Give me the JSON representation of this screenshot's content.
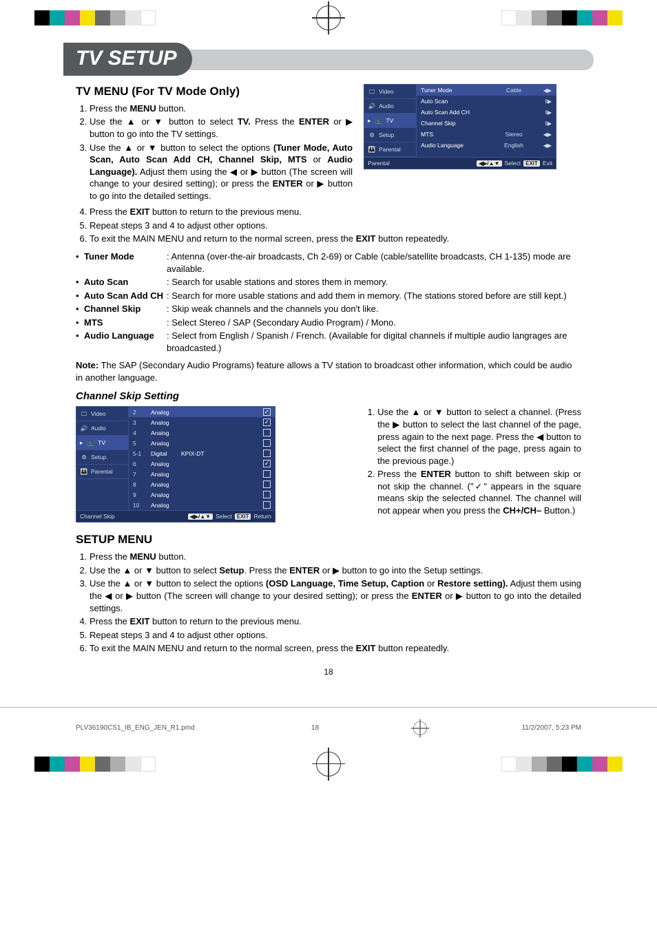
{
  "regmarks": {
    "colors_left": [
      "#000000",
      "#00a6a6",
      "#c64f9f",
      "#f5e100",
      "#6a6a6a",
      "#aeaeae",
      "#e7e7e7",
      "#ffffff"
    ],
    "colors_right": [
      "#ffffff",
      "#e7e7e7",
      "#aeaeae",
      "#6a6a6a",
      "#000000",
      "#00a6a6",
      "#c64f9f",
      "#f5e100"
    ]
  },
  "title": "TV SETUP",
  "section1": {
    "heading": "TV MENU (For TV Mode Only)",
    "steps": [
      "Press the <b>MENU</b> button.",
      "Use the ▲ or ▼ button to select <b>TV.</b> Press the <b>ENTER</b> or ▶ button to go into the TV settings.",
      "Use the ▲ or ▼ button to select the options <b>(Tuner Mode, Auto Scan, Auto Scan Add CH, Channel Skip, MTS</b> or <b>Audio Language).</b> Adjust them using the ◀ or ▶ button (The screen will change to your desired setting); or press the <b>ENTER</b> or ▶ button to go into the detailed settings.",
      "Press the <b>EXIT</b> button to return to the previous menu.",
      "Repeat steps 3 and 4 to adjust other options.",
      "To exit the MAIN MENU and return to the normal screen, press the <b>EXIT</b> button repeatedly."
    ],
    "bullets": [
      {
        "label": "Tuner Mode",
        "desc": ": Antenna (over-the-air broadcasts, Ch 2-69) or Cable (cable/satellite broadcasts, CH 1-135) mode are available."
      },
      {
        "label": "Auto Scan",
        "desc": ": Search for usable stations and stores them in memory."
      },
      {
        "label": "Auto Scan Add CH",
        "desc": ": Search for more usable stations and add them in memory. (The stations stored before are still kept.)"
      },
      {
        "label": "Channel Skip",
        "desc": ": Skip weak channels and the channels you don't like."
      },
      {
        "label": "MTS",
        "desc": ": Select Stereo / SAP (Secondary Audio Program) / Mono."
      },
      {
        "label": "Audio Language",
        "desc": ": Select from English / Spanish / French. (Available for digital channels if multiple audio langrages are broadcasted.)"
      }
    ],
    "note": "<b>Note:</b> The SAP (Secondary Audio Programs) feature allows a TV station to broadcast other information, which could be audio in another language."
  },
  "channel_skip": {
    "heading": "Channel Skip Setting",
    "steps": [
      "Use the ▲ or ▼ button to select a channel. (Press the ▶ button to select the last channel of the page, press again to the next page. Press the ◀ button to select the first channel of the page, press again to the previous page.)",
      "Press the <b>ENTER</b> button to shift between skip or not skip the channel. (\"✓\" appears in the square means skip the selected channel. The channel will not appear when you press the <b>CH+/CH–</b> Button.)"
    ]
  },
  "section2": {
    "heading": "SETUP MENU",
    "steps": [
      "Press the <b>MENU</b> button.",
      "Use the ▲ or ▼ button to select <b>Setup</b>. Press the <b>ENTER</b> or ▶ button to go into the Setup settings.",
      "Use the ▲ or ▼ button to select the options <b>(OSD Language, Time Setup, Caption</b> or <b>Restore setting).</b> Adjust them using the ◀ or ▶ button (The screen will change to your desired setting); or press the <b>ENTER</b> or ▶ button to go into the detailed settings.",
      "Press the <b>EXIT</b> button to return to the previous menu.",
      "Repeat steps 3 and 4 to adjust other options.",
      "To exit the MAIN MENU and return to the normal screen, press the <b>EXIT</b> button repeatedly."
    ]
  },
  "osd1": {
    "sidebar": [
      {
        "icon": "🖵",
        "label": "Video"
      },
      {
        "icon": "🔊",
        "label": "Audio"
      },
      {
        "icon": "📺",
        "label": "TV",
        "selected": true
      },
      {
        "icon": "⚙",
        "label": "Setup"
      },
      {
        "icon": "👪",
        "label": "Parental"
      }
    ],
    "rows": [
      {
        "label": "Tuner Mode",
        "value": "Cable",
        "ind": "◀▶",
        "selected": true
      },
      {
        "label": "Auto Scan",
        "value": "",
        "ind": "‖▶"
      },
      {
        "label": "Auto Scan Add CH",
        "value": "",
        "ind": "‖▶"
      },
      {
        "label": "Channel Skip",
        "value": "",
        "ind": "‖▶"
      },
      {
        "label": "MTS",
        "value": "Stereo",
        "ind": "◀▶"
      },
      {
        "label": "Audio Language",
        "value": "English",
        "ind": "◀▶"
      }
    ],
    "footer": {
      "left": "Parental",
      "keys": [
        "◀▶/▲▼",
        "Select",
        "EXIT",
        "Exit"
      ]
    },
    "colors": {
      "bg": "#263a6f",
      "sel": "#3a5099",
      "text": "#ffffff",
      "muted": "#d6dbe8"
    }
  },
  "osd2": {
    "sidebar": [
      {
        "icon": "🖵",
        "label": "Video"
      },
      {
        "icon": "🔊",
        "label": "Audio"
      },
      {
        "icon": "📺",
        "label": "TV",
        "selected": true
      },
      {
        "icon": "⚙",
        "label": "Setup"
      },
      {
        "icon": "👪",
        "label": "Parental"
      }
    ],
    "rows": [
      {
        "num": "2",
        "sig": "Analog",
        "name": "",
        "checked": true,
        "selected": true
      },
      {
        "num": "3",
        "sig": "Analog",
        "name": "",
        "checked": true
      },
      {
        "num": "4",
        "sig": "Analog",
        "name": "",
        "checked": false
      },
      {
        "num": "5",
        "sig": "Analog",
        "name": "",
        "checked": false
      },
      {
        "num": "5-1",
        "sig": "Digital",
        "name": "KPIX-DT",
        "checked": false
      },
      {
        "num": "6",
        "sig": "Analog",
        "name": "",
        "checked": true
      },
      {
        "num": "7",
        "sig": "Analog",
        "name": "",
        "checked": false
      },
      {
        "num": "8",
        "sig": "Analog",
        "name": "",
        "checked": false
      },
      {
        "num": "9",
        "sig": "Analog",
        "name": "",
        "checked": false
      },
      {
        "num": "10",
        "sig": "Analog",
        "name": "",
        "checked": false
      }
    ],
    "footer": {
      "left": "Channel Skip",
      "keys": [
        "◀▶/▲▼",
        "Select",
        "EXIT",
        "Return"
      ]
    }
  },
  "pagenum": "18",
  "footer_meta": {
    "file": "PLV36190CS1_IB_ENG_JEN_R1.pmd",
    "page": "18",
    "timestamp": "11/2/2007, 5:23 PM"
  }
}
